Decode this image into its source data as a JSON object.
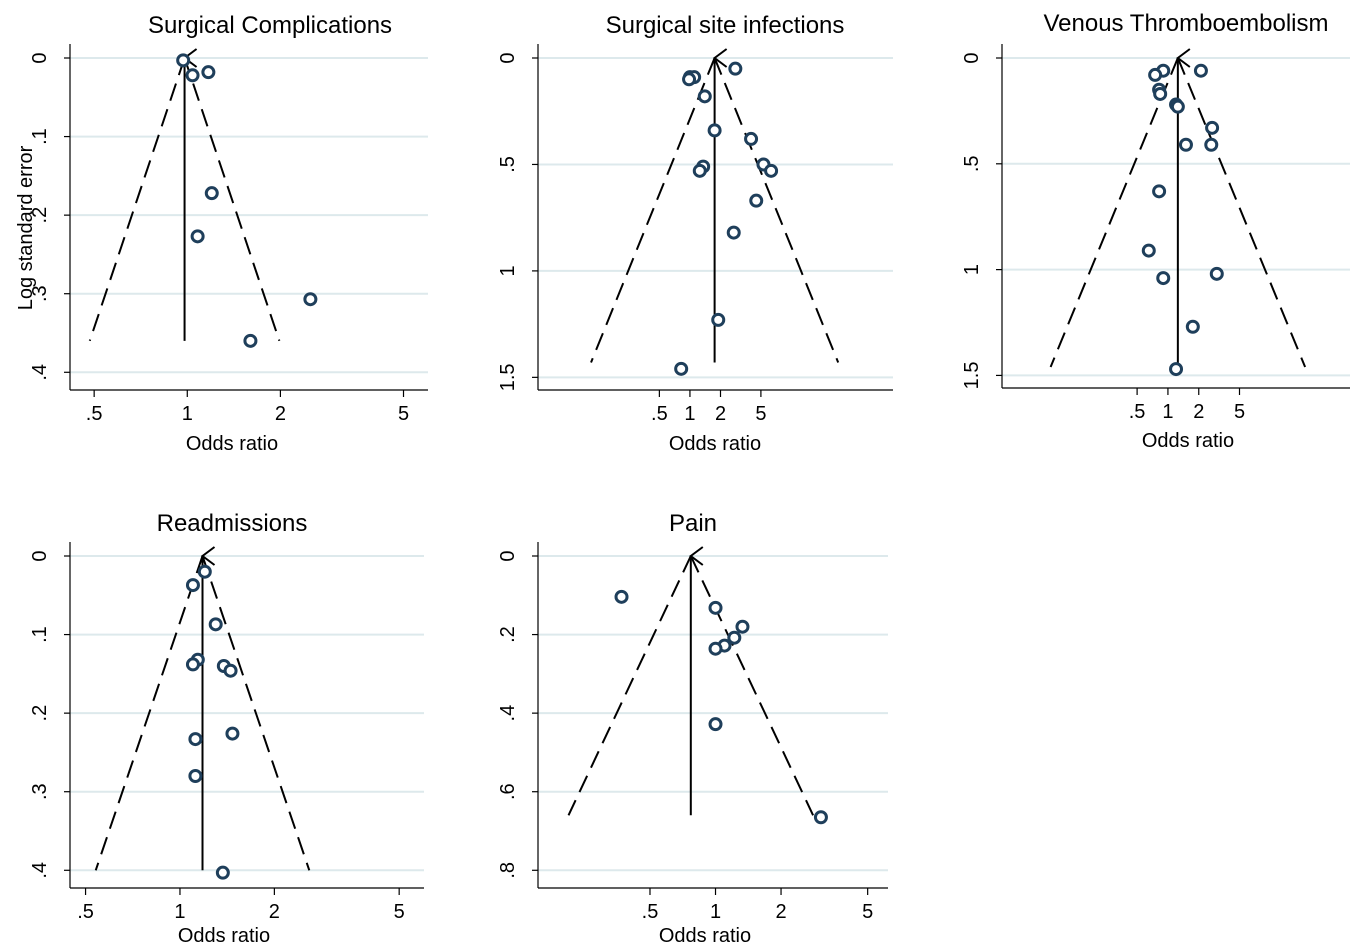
{
  "chart_data": [
    {
      "type": "scatter",
      "title": "Surgical Complications",
      "xlabel": "Odds ratio",
      "ylabel": "Log standard error",
      "x_scale": "log",
      "y_inverted": true,
      "xlim": [
        0.45,
        6
      ],
      "ylim": [
        0,
        0.42
      ],
      "x_ticks": [
        0.5,
        1,
        2,
        5
      ],
      "x_tick_labels": [
        ".5",
        "1",
        "2",
        "5"
      ],
      "y_ticks": [
        0,
        0.1,
        0.2,
        0.3,
        0.4
      ],
      "y_tick_labels": [
        "0",
        ".1",
        ".2",
        ".3",
        ".4"
      ],
      "pooled_or": 0.98,
      "funnel_se_max": 0.36,
      "grid": true,
      "points": [
        {
          "x": 0.97,
          "y": 0.003
        },
        {
          "x": 1.04,
          "y": 0.022
        },
        {
          "x": 1.17,
          "y": 0.018
        },
        {
          "x": 1.2,
          "y": 0.172
        },
        {
          "x": 1.08,
          "y": 0.227
        },
        {
          "x": 2.5,
          "y": 0.307
        },
        {
          "x": 1.6,
          "y": 0.36
        }
      ]
    },
    {
      "type": "scatter",
      "title": "Surgical site infections",
      "xlabel": "Odds ratio",
      "ylabel": "",
      "x_scale": "log",
      "y_inverted": true,
      "xlim": [
        0.04,
        100
      ],
      "ylim": [
        0,
        1.55
      ],
      "x_ticks": [
        0.5,
        1,
        2,
        5
      ],
      "x_tick_labels": [
        ".5",
        "1",
        "2",
        "5"
      ],
      "y_ticks": [
        0,
        0.5,
        1,
        1.5
      ],
      "y_tick_labels": [
        "0",
        ".5",
        "1",
        "1.5"
      ],
      "pooled_or": 1.75,
      "funnel_se_max": 1.43,
      "grid": true,
      "points": [
        {
          "x": 2.8,
          "y": 0.05
        },
        {
          "x": 1.0,
          "y": 0.09
        },
        {
          "x": 1.1,
          "y": 0.09
        },
        {
          "x": 0.98,
          "y": 0.1
        },
        {
          "x": 1.4,
          "y": 0.18
        },
        {
          "x": 1.75,
          "y": 0.34
        },
        {
          "x": 4.0,
          "y": 0.38
        },
        {
          "x": 1.35,
          "y": 0.51
        },
        {
          "x": 1.25,
          "y": 0.53
        },
        {
          "x": 5.3,
          "y": 0.5
        },
        {
          "x": 6.3,
          "y": 0.53
        },
        {
          "x": 4.5,
          "y": 0.67
        },
        {
          "x": 2.7,
          "y": 0.82
        },
        {
          "x": 1.9,
          "y": 1.23
        },
        {
          "x": 0.82,
          "y": 1.46
        }
      ]
    },
    {
      "type": "scatter",
      "title": "Venous Thromboembolism",
      "xlabel": "Odds ratio",
      "ylabel": "",
      "x_scale": "log",
      "y_inverted": true,
      "xlim": [
        0.03,
        60
      ],
      "ylim": [
        0,
        1.55
      ],
      "x_ticks": [
        0.5,
        1,
        2,
        5
      ],
      "x_tick_labels": [
        ".5",
        "1",
        "2",
        "5"
      ],
      "y_ticks": [
        0,
        0.5,
        1,
        1.5
      ],
      "y_tick_labels": [
        "0",
        ".5",
        "1",
        "1.5"
      ],
      "pooled_or": 1.25,
      "funnel_se_max": 1.46,
      "grid": true,
      "points": [
        {
          "x": 2.1,
          "y": 0.06
        },
        {
          "x": 0.9,
          "y": 0.06
        },
        {
          "x": 0.75,
          "y": 0.08
        },
        {
          "x": 0.82,
          "y": 0.15
        },
        {
          "x": 0.84,
          "y": 0.17
        },
        {
          "x": 1.2,
          "y": 0.22
        },
        {
          "x": 1.25,
          "y": 0.23
        },
        {
          "x": 2.7,
          "y": 0.33
        },
        {
          "x": 1.5,
          "y": 0.41
        },
        {
          "x": 2.65,
          "y": 0.41
        },
        {
          "x": 0.82,
          "y": 0.63
        },
        {
          "x": 0.65,
          "y": 0.91
        },
        {
          "x": 0.9,
          "y": 1.04
        },
        {
          "x": 3.0,
          "y": 1.02
        },
        {
          "x": 1.75,
          "y": 1.27
        },
        {
          "x": 1.2,
          "y": 1.47
        }
      ]
    },
    {
      "type": "scatter",
      "title": "Readmissions",
      "xlabel": "Odds ratio",
      "ylabel": "",
      "x_scale": "log",
      "y_inverted": true,
      "xlim": [
        0.48,
        6
      ],
      "ylim": [
        0,
        0.42
      ],
      "x_ticks": [
        0.5,
        1,
        2,
        5
      ],
      "x_tick_labels": [
        ".5",
        "1",
        "2",
        "5"
      ],
      "y_ticks": [
        0,
        0.1,
        0.2,
        0.3,
        0.4
      ],
      "y_tick_labels": [
        "0",
        ".1",
        ".2",
        ".3",
        ".4"
      ],
      "pooled_or": 1.18,
      "funnel_se_max": 0.4,
      "grid": true,
      "points": [
        {
          "x": 1.2,
          "y": 0.02
        },
        {
          "x": 1.1,
          "y": 0.037
        },
        {
          "x": 1.3,
          "y": 0.087
        },
        {
          "x": 1.14,
          "y": 0.132
        },
        {
          "x": 1.1,
          "y": 0.138
        },
        {
          "x": 1.38,
          "y": 0.14
        },
        {
          "x": 1.45,
          "y": 0.146
        },
        {
          "x": 1.47,
          "y": 0.226
        },
        {
          "x": 1.12,
          "y": 0.233
        },
        {
          "x": 1.12,
          "y": 0.28
        },
        {
          "x": 1.37,
          "y": 0.403
        }
      ]
    },
    {
      "type": "scatter",
      "title": "Pain",
      "xlabel": "Odds ratio",
      "ylabel": "",
      "x_scale": "log",
      "y_inverted": true,
      "xlim": [
        0.17,
        6.2
      ],
      "ylim": [
        0,
        0.84
      ],
      "x_ticks": [
        0.5,
        1,
        2,
        5
      ],
      "x_tick_labels": [
        ".5",
        "1",
        "2",
        "5"
      ],
      "y_ticks": [
        0,
        0.2,
        0.4,
        0.6,
        0.8
      ],
      "y_tick_labels": [
        "0",
        ".2",
        ".4",
        ".6",
        ".8"
      ],
      "pooled_or": 0.77,
      "funnel_se_max": 0.66,
      "grid": true,
      "points": [
        {
          "x": 0.37,
          "y": 0.104
        },
        {
          "x": 1.0,
          "y": 0.132
        },
        {
          "x": 1.33,
          "y": 0.18
        },
        {
          "x": 1.22,
          "y": 0.208
        },
        {
          "x": 1.1,
          "y": 0.228
        },
        {
          "x": 1.0,
          "y": 0.236
        },
        {
          "x": 1.0,
          "y": 0.428
        },
        {
          "x": 3.05,
          "y": 0.665
        }
      ]
    }
  ]
}
